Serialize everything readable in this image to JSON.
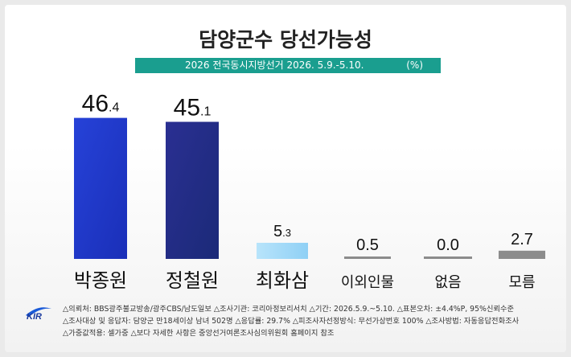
{
  "title": "담양군수 당선가능성",
  "subtitle": "2026 전국동시지방선거 2026. 5.9.-5.10.",
  "unit": "(%)",
  "colors": {
    "accent": "#1a9e8f",
    "bar_dark_blue": "#1a2fb8",
    "bar_navy": "#1b2a78",
    "bar_light_blue": "#8fd0f5",
    "bar_gray": "#8c8c8c"
  },
  "chart_data": {
    "type": "bar",
    "categories": [
      "박종원",
      "정철원",
      "최화삼",
      "이외인물",
      "없음",
      "모름"
    ],
    "values": [
      46.4,
      45.1,
      5.3,
      0.5,
      0.0,
      2.7
    ],
    "value_labels": [
      {
        "int": "46",
        "dec": ".4"
      },
      {
        "int": "45",
        "dec": ".1"
      },
      {
        "int": "5",
        "dec": ".3"
      },
      {
        "int": "0.5",
        "dec": ""
      },
      {
        "int": "0.0",
        "dec": ""
      },
      {
        "int": "2.7",
        "dec": ""
      }
    ],
    "title": "담양군수 당선가능성",
    "xlabel": "",
    "ylabel": "",
    "ylim": [
      0,
      50
    ],
    "grid": false,
    "legend": "none"
  },
  "footnotes": [
    "△의뢰처: BBS광주불교방송/광주CBS/남도일보  △조사기관: 코리아정보리서치  △기간: 2026.5.9.~5.10.  △표본오차: ±4.4%P, 95%신뢰수준",
    "△조사대상 및 응답자: 담양군 만18세이상 남녀 502명  △응답률: 29.7%  △피조사자선정방식: 무선가상번호 100%  △조사방법: 자동응답전화조사",
    "△가중값적용: 셀가중  △보다 자세한 사항은 중앙선거여론조사심의위원회 홈페이지 참조"
  ],
  "logo_text": "KIR"
}
